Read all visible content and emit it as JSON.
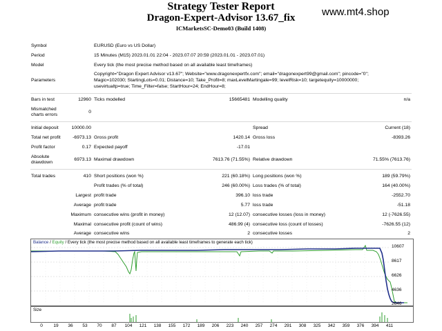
{
  "header": {
    "title": "Strategy Tester Report",
    "ea_name": "Dragon-Expert-Advisor 13.67_fix",
    "server": "ICMarketsSC-Demo03 (Build 1408)",
    "watermark": "www.mt4.shop"
  },
  "settings": {
    "symbol_label": "Symbol",
    "symbol_value": "EURUSD (Euro vs US Dollar)",
    "period_label": "Period",
    "period_value": "15 Minutes (M15) 2023.01.01 22:04 - 2023.07.07 20:59 (2023.01.01 - 2023.07.01)",
    "model_label": "Model",
    "model_value": "Every tick (the most precise method based on all available least timeframes)",
    "params_label": "Parameters",
    "params_line1": "Copyright=\"Dragon Expert Advisor v13.67\"; Website=\"www.dragonexpertfx.com\"; email=\"dragonexpert99@gmail.com\"; pincode=\"0\";",
    "params_line2": "Magic=102030; StartingLots=0.01; Distance=10; Take_Profit=8; maxLevelMartingale=99; levelRisk=10; targetequity=10000000;",
    "params_line3": "usevirtualtp=true; Time_Filter=false; StartHour=24; EndHour=8;"
  },
  "stats": {
    "bars_label": "Bars in test",
    "bars_value": "12960",
    "ticks_label": "Ticks modelled",
    "ticks_value": "15665481",
    "mq_label": "Modelling quality",
    "mq_value": "n/a",
    "mismatch_label1": "Mismatched",
    "mismatch_label2": "charts errors",
    "mismatch_value": "0",
    "deposit_label": "Initial deposit",
    "deposit_value": "10000.00",
    "spread_label": "Spread",
    "spread_value": "Current (18)",
    "netprofit_label": "Total net profit",
    "netprofit_value": "-6973.13",
    "grossprofit_label": "Gross profit",
    "grossprofit_value": "1420.14",
    "grossloss_label": "Gross loss",
    "grossloss_value": "-8393.26",
    "pf_label": "Profit factor",
    "pf_value": "0.17",
    "payoff_label": "Expected payoff",
    "payoff_value": "-17.01",
    "absdd_label1": "Absolute",
    "absdd_label2": "drawdown",
    "absdd_value": "6973.13",
    "maxdd_label": "Maximal drawdown",
    "maxdd_value": "7613.76 (71.55%)",
    "reldd_label": "Relative drawdown",
    "reldd_value": "71.55% (7613.76)",
    "trades_label": "Total trades",
    "trades_value": "410",
    "short_label": "Short positions (won %)",
    "short_value": "221 (60.18%)",
    "long_label": "Long positions (won %)",
    "long_value": "189 (59.79%)",
    "profit_trades_label": "Profit trades (% of total)",
    "profit_trades_value": "246 (60.00%)",
    "loss_trades_label": "Loss trades (% of total)",
    "loss_trades_value": "164 (40.00%)",
    "largest_label": "Largest",
    "largest_profit_label": "profit trade",
    "largest_profit_value": "396.10",
    "largest_loss_label": "loss trade",
    "largest_loss_value": "-2552.70",
    "average_label": "Average",
    "avg_profit_label": "profit trade",
    "avg_profit_value": "5.77",
    "avg_loss_label": "loss trade",
    "avg_loss_value": "-51.18",
    "maximum_label": "Maximum",
    "max_cw_label": "consecutive wins (profit in money)",
    "max_cw_value": "12 (12.07)",
    "max_cl_label": "consecutive losses (loss in money)",
    "max_cl_value": "12 (-7626.55)",
    "maximal_label": "Maximal",
    "mxl_cp_label": "consecutive profit (count of wins)",
    "mxl_cp_value": "486.99 (4)",
    "mxl_cl_label": "consecutive loss (count of losses)",
    "mxl_cl_value": "-7626.55 (12)",
    "average2_label": "Average",
    "avg_cw_label": "consecutive wins",
    "avg_cw_value": "2",
    "avg_cl_label": "consecutive losses",
    "avg_cl_value": "2"
  },
  "chart": {
    "caption_balance": "Balance",
    "caption_sep": " / ",
    "caption_equity": "Equity",
    "caption_rest": " / Every tick (the most precise method based on all available least timeframes to generate each tick)",
    "size_label": "Size",
    "y_ticks": [
      "10607",
      "8617",
      "6626",
      "4636",
      "2646"
    ],
    "x_ticks": [
      "0",
      "19",
      "36",
      "53",
      "70",
      "87",
      "104",
      "121",
      "138",
      "155",
      "172",
      "189",
      "206",
      "223",
      "240",
      "257",
      "274",
      "291",
      "308",
      "325",
      "342",
      "359",
      "376",
      "394",
      "411"
    ],
    "colors": {
      "balance": "#1f2f8a",
      "equity": "#2e9e2e"
    }
  }
}
